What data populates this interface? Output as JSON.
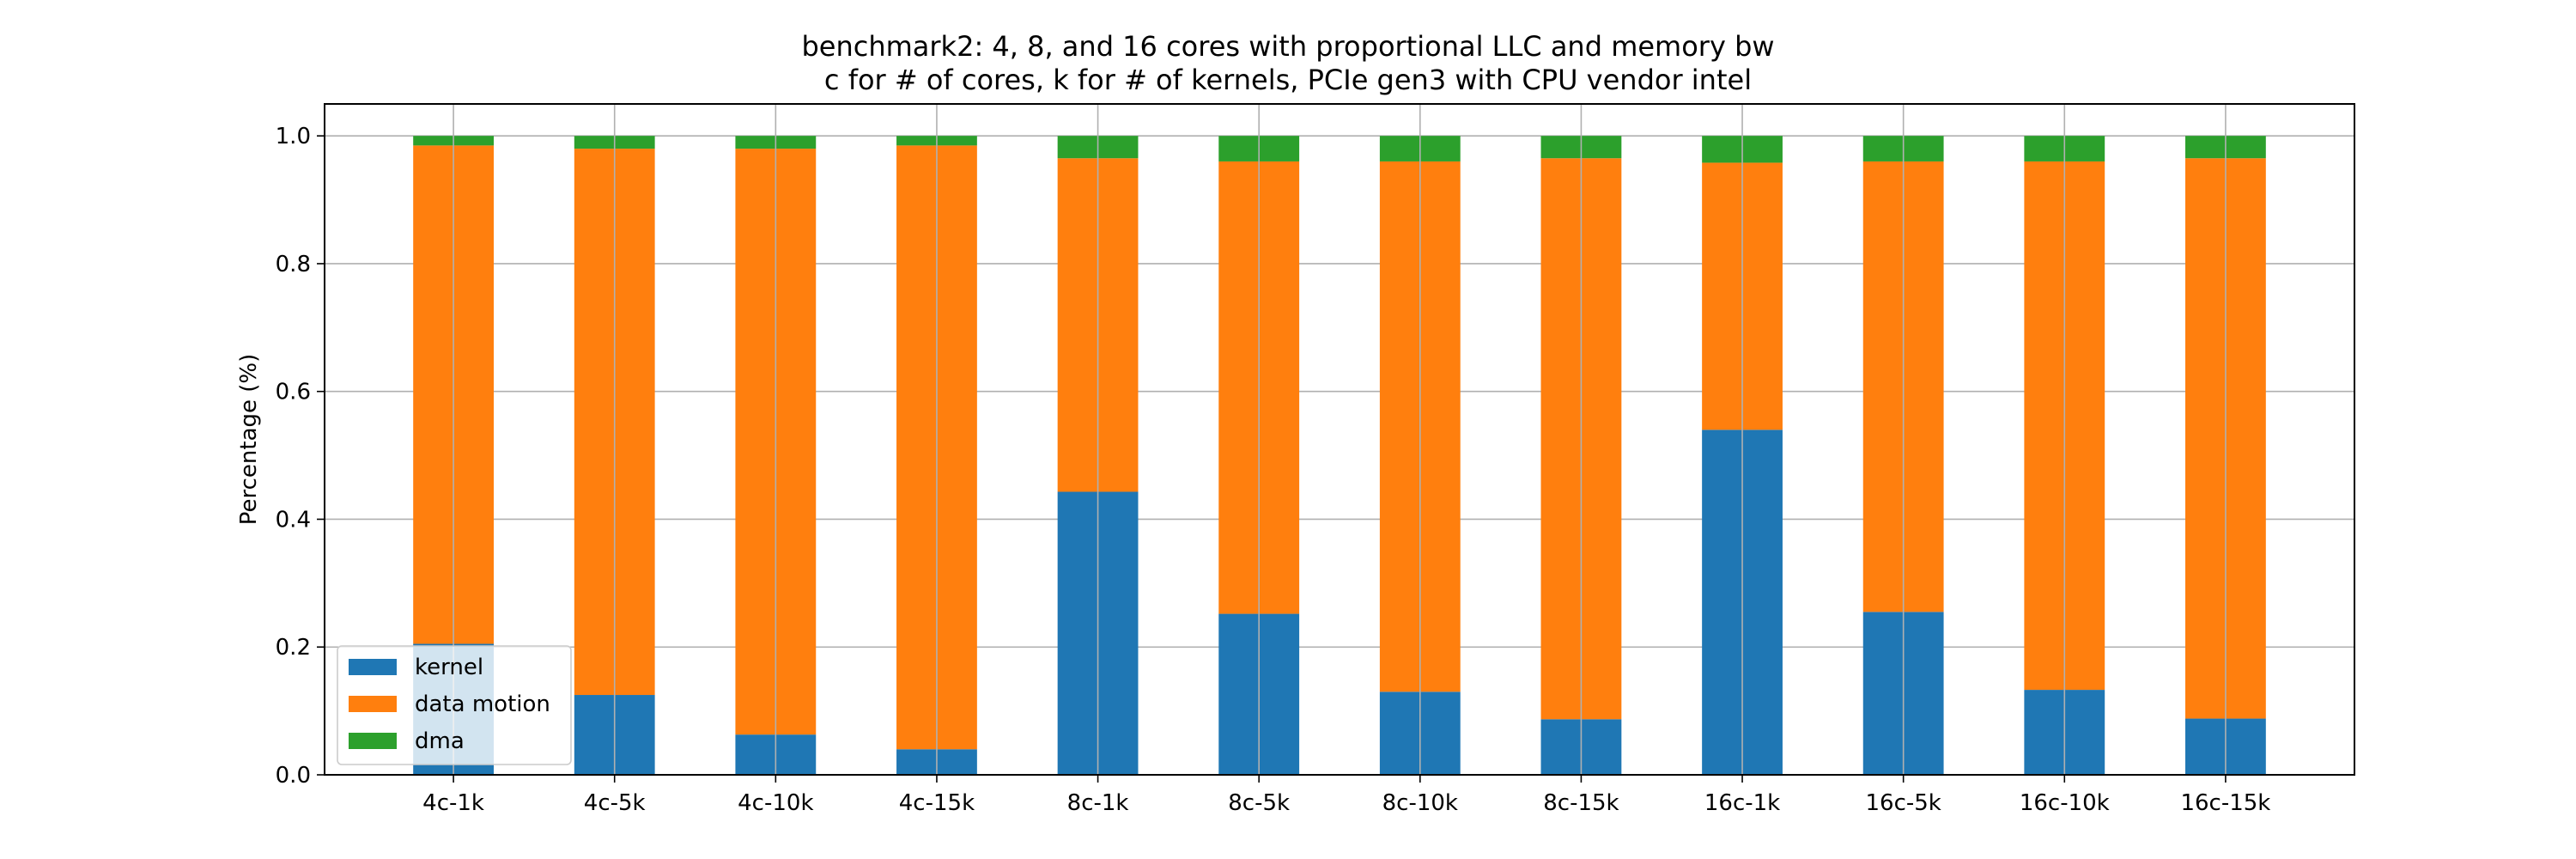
{
  "chart_data": {
    "type": "bar",
    "stacked": true,
    "title_lines": [
      "benchmark2: 4, 8, and 16 cores with proportional LLC and memory bw",
      "c for # of cores, k for # of kernels, PCIe gen3 with CPU vendor intel"
    ],
    "xlabel": "",
    "ylabel": "Percentage (%)",
    "ylim": [
      0,
      1.05
    ],
    "yticks": [
      0.0,
      0.2,
      0.4,
      0.6,
      0.8,
      1.0
    ],
    "ytick_labels": [
      "0.0",
      "0.2",
      "0.4",
      "0.6",
      "0.8",
      "1.0"
    ],
    "grid": true,
    "legend_position": "lower-left",
    "categories": [
      "4c-1k",
      "4c-5k",
      "4c-10k",
      "4c-15k",
      "8c-1k",
      "8c-5k",
      "8c-10k",
      "8c-15k",
      "16c-1k",
      "16c-5k",
      "16c-10k",
      "16c-15k"
    ],
    "series": [
      {
        "name": "kernel",
        "color": "#1f77b4",
        "values": [
          0.205,
          0.125,
          0.063,
          0.04,
          0.443,
          0.252,
          0.13,
          0.087,
          0.54,
          0.255,
          0.133,
          0.088
        ]
      },
      {
        "name": "data motion",
        "color": "#ff7f0e",
        "values": [
          0.78,
          0.855,
          0.917,
          0.945,
          0.522,
          0.708,
          0.83,
          0.878,
          0.418,
          0.705,
          0.827,
          0.877
        ]
      },
      {
        "name": "dma",
        "color": "#2ca02c",
        "values": [
          0.015,
          0.02,
          0.02,
          0.015,
          0.035,
          0.04,
          0.04,
          0.035,
          0.042,
          0.04,
          0.04,
          0.035
        ]
      }
    ]
  }
}
